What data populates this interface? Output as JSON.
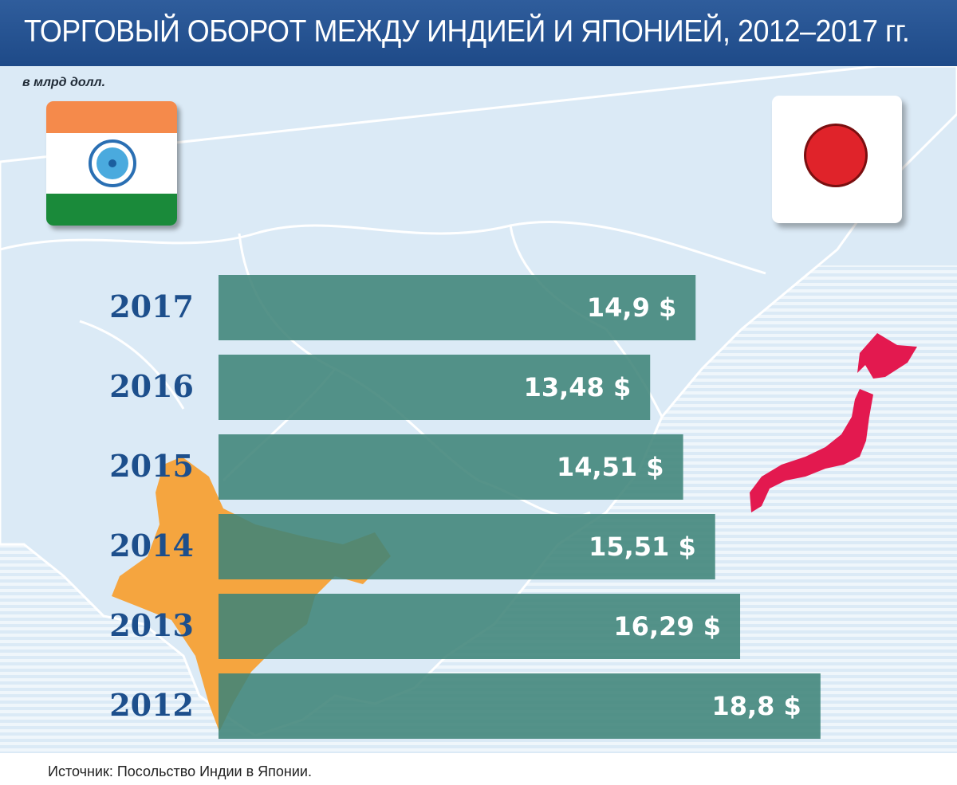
{
  "header": {
    "title": "ТОРГОВЫЙ ОБОРОТ МЕЖДУ ИНДИЕЙ И ЯПОНИЕЙ, 2012–2017 гг."
  },
  "unit_label": "в млрд долл.",
  "source": "Источник: Посольство Индии в Японии.",
  "colors": {
    "header": "#2a5796",
    "map_background": "#dbeaf6",
    "bar": "#3f8479",
    "india": "#f5a53f",
    "japan": "#e3194f",
    "year_label": "#1d4f8c"
  },
  "icons": {
    "india_flag": "india-flag-icon",
    "japan_flag": "japan-flag-icon"
  },
  "chart_data": {
    "type": "bar",
    "orientation": "horizontal",
    "title": "ТОРГОВЫЙ ОБОРОТ МЕЖДУ ИНДИЕЙ И ЯПОНИЕЙ, 2012–2017 гг.",
    "unit": "в млрд долл.",
    "categories": [
      "2017",
      "2016",
      "2015",
      "2014",
      "2013",
      "2012"
    ],
    "values": [
      14.9,
      13.48,
      14.51,
      15.51,
      16.29,
      18.8
    ],
    "labels": [
      "14,9 $",
      "13,48 $",
      "14,51 $",
      "15,51 $",
      "16,29 $",
      "18,8 $"
    ],
    "grid": false,
    "legend": "none"
  }
}
